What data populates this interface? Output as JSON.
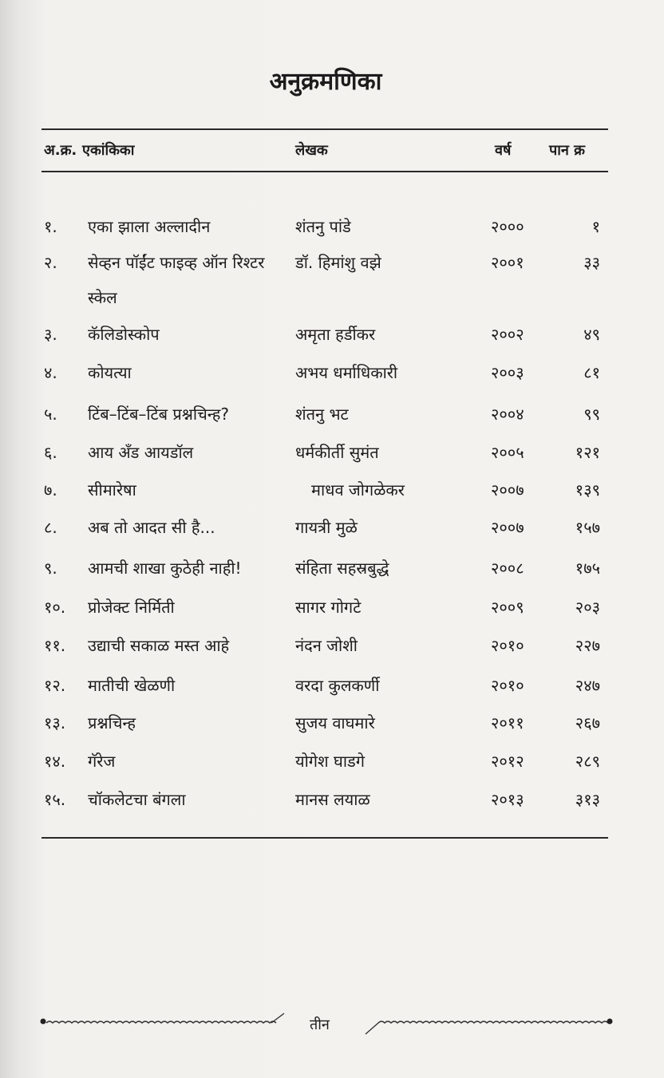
{
  "title": "अनुक्रमणिका",
  "headers": {
    "number": "अ.क्र.",
    "play": "एकांकिका",
    "author": "लेखक",
    "year": "वर्ष",
    "page": "पान क्र"
  },
  "rows": [
    {
      "number": "१.",
      "play": "एका झाला अल्लादीन",
      "author": "शंतनु पांडे",
      "year": "२०००",
      "page": "१"
    },
    {
      "number": "२.",
      "play": "सेव्हन पॉईंट फाइव्ह ऑन रिश्टर स्केल",
      "author": "डॉ. हिमांशु वझे",
      "year": "२००१",
      "page": "३३"
    },
    {
      "number": "३.",
      "play": "कॅलिडोस्कोप",
      "author": "अमृता हर्डीकर",
      "year": "२००२",
      "page": "४९"
    },
    {
      "number": "४.",
      "play": "कोयत्या",
      "author": "अभय धर्माधिकारी",
      "year": "२००३",
      "page": "८१"
    },
    {
      "number": "५.",
      "play": "टिंब–टिंब–टिंब प्रश्नचिन्ह?",
      "author": "शंतनु भट",
      "year": "२००४",
      "page": "९९"
    },
    {
      "number": "६.",
      "play": "आय अँड आयडॉल",
      "author": "धर्मकीर्ती सुमंत",
      "year": "२००५",
      "page": "१२१"
    },
    {
      "number": "७.",
      "play": "सीमारेषा",
      "author": "माधव जोगळेकर",
      "year": "२००७",
      "page": "१३९"
    },
    {
      "number": "८.",
      "play": "अब तो आदत सी है...",
      "author": "गायत्री मुळे",
      "year": "२००७",
      "page": "१५७"
    },
    {
      "number": "९.",
      "play": "आमची शाखा कुठेही नाही!",
      "author": "संहिता सहस्रबुद्धे",
      "year": "२००८",
      "page": "१७५"
    },
    {
      "number": "१०.",
      "play": "प्रोजेक्ट निर्मिती",
      "author": "सागर गोगटे",
      "year": "२००९",
      "page": "२०३"
    },
    {
      "number": "११.",
      "play": "उद्याची सकाळ मस्त आहे",
      "author": "नंदन जोशी",
      "year": "२०१०",
      "page": "२२७"
    },
    {
      "number": "१२.",
      "play": "मातीची खेळणी",
      "author": "वरदा कुलकर्णी",
      "year": "२०१०",
      "page": "२४७"
    },
    {
      "number": "१३.",
      "play": "प्रश्नचिन्ह",
      "author": "सुजय वाघमारे",
      "year": "२०११",
      "page": "२६७"
    },
    {
      "number": "१४.",
      "play": "गॅरेज",
      "author": "योगेश घाडगे",
      "year": "२०१२",
      "page": "२८९"
    },
    {
      "number": "१५.",
      "play": "चॉकलेटचा बंगला",
      "author": "मानस लयाळ",
      "year": "२०१३",
      "page": "३१३"
    }
  ],
  "footer": {
    "page_label": "तीन"
  }
}
